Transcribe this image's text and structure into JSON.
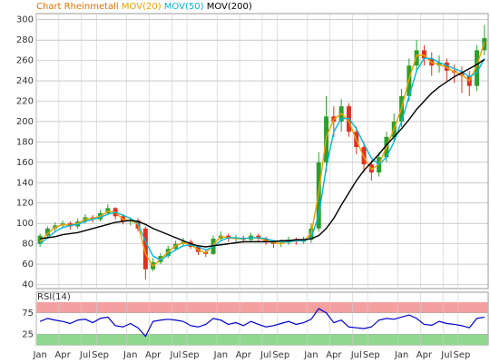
{
  "chart_data": [
    {
      "type": "candlestick",
      "title": "Chart Rheinmetall",
      "title_color": "#e07000",
      "categories": [
        "Jan",
        null,
        null,
        "Apr",
        null,
        null,
        "Jul",
        null,
        "Sep",
        null,
        null,
        null,
        "Jan",
        null,
        null,
        "Apr",
        null,
        null,
        "Jul",
        null,
        "Sep",
        null,
        null,
        null,
        "Jan",
        null,
        null,
        "Apr",
        null,
        null,
        "Jul",
        null,
        "Sep",
        null,
        null,
        null,
        "Jan",
        null,
        null,
        "Apr",
        null,
        null,
        "Jul",
        null,
        "Sep",
        null,
        null,
        null,
        "Jan",
        null,
        null,
        "Apr",
        null,
        null,
        "Jul",
        null,
        "Sep",
        null,
        null,
        null
      ],
      "open": [
        80,
        88,
        95,
        98,
        100,
        97,
        102,
        106,
        104,
        110,
        115,
        107,
        102,
        103,
        95,
        55,
        62,
        68,
        75,
        80,
        82,
        77,
        72,
        70,
        85,
        88,
        85,
        86,
        84,
        88,
        85,
        82,
        80,
        81,
        84,
        82,
        84,
        95,
        160,
        205,
        200,
        215,
        190,
        175,
        158,
        150,
        165,
        185,
        200,
        225,
        255,
        270,
        262,
        255,
        258,
        250,
        248,
        245,
        235,
        270
      ],
      "high": [
        90,
        97,
        101,
        103,
        102,
        105,
        109,
        108,
        113,
        119,
        116,
        109,
        106,
        105,
        97,
        66,
        71,
        78,
        83,
        86,
        84,
        79,
        74,
        88,
        92,
        90,
        89,
        88,
        91,
        90,
        87,
        84,
        84,
        87,
        86,
        87,
        100,
        170,
        225,
        215,
        222,
        218,
        195,
        180,
        162,
        170,
        190,
        208,
        232,
        262,
        280,
        275,
        268,
        265,
        262,
        256,
        254,
        250,
        275,
        295
      ],
      "low": [
        77,
        85,
        92,
        95,
        94,
        95,
        100,
        101,
        102,
        108,
        104,
        99,
        98,
        92,
        45,
        53,
        60,
        66,
        73,
        77,
        75,
        69,
        67,
        69,
        83,
        82,
        82,
        81,
        82,
        82,
        79,
        76,
        77,
        79,
        79,
        80,
        81,
        92,
        150,
        185,
        190,
        185,
        168,
        150,
        142,
        146,
        160,
        180,
        195,
        220,
        250,
        255,
        245,
        248,
        240,
        238,
        228,
        225,
        230,
        265
      ],
      "close": [
        88,
        95,
        98,
        100,
        97,
        102,
        106,
        104,
        110,
        115,
        107,
        102,
        103,
        95,
        55,
        62,
        68,
        75,
        80,
        82,
        77,
        72,
        70,
        85,
        88,
        85,
        86,
        84,
        88,
        85,
        82,
        80,
        81,
        84,
        82,
        84,
        95,
        160,
        205,
        200,
        215,
        190,
        175,
        158,
        150,
        165,
        185,
        200,
        225,
        255,
        270,
        262,
        255,
        258,
        250,
        248,
        245,
        235,
        270,
        282
      ],
      "up_color": "#2ca02c",
      "down_color": "#e03020",
      "series": [
        {
          "name": "MOV(20)",
          "color": "#f0a000",
          "values": [
            82,
            90,
            96,
            99,
            98,
            100,
            104,
            105,
            107,
            112,
            111,
            104,
            103,
            99,
            70,
            58,
            65,
            72,
            78,
            81,
            79,
            74,
            71,
            79,
            87,
            86,
            85,
            85,
            86,
            86,
            83,
            81,
            80,
            83,
            83,
            83,
            90,
            130,
            185,
            202,
            208,
            200,
            182,
            165,
            153,
            158,
            175,
            193,
            213,
            242,
            265,
            265,
            258,
            256,
            253,
            249,
            246,
            240,
            255,
            278
          ]
        },
        {
          "name": "MOV(50)",
          "color": "#00b8d8",
          "values": [
            80,
            86,
            92,
            96,
            98,
            99,
            102,
            104,
            106,
            109,
            111,
            108,
            105,
            100,
            82,
            68,
            64,
            69,
            74,
            78,
            79,
            77,
            74,
            77,
            83,
            86,
            86,
            85,
            86,
            86,
            85,
            83,
            82,
            82,
            83,
            83,
            86,
            108,
            155,
            190,
            203,
            203,
            193,
            178,
            164,
            158,
            165,
            180,
            200,
            225,
            250,
            262,
            262,
            258,
            255,
            252,
            249,
            244,
            248,
            262
          ]
        },
        {
          "name": "MOV(200)",
          "color": "#000000",
          "values": [
            85,
            86,
            87,
            89,
            90,
            91,
            93,
            95,
            97,
            99,
            101,
            102,
            103,
            102,
            99,
            95,
            92,
            89,
            86,
            83,
            80,
            78,
            77,
            78,
            79,
            80,
            81,
            82,
            82,
            82,
            82,
            82,
            83,
            83,
            84,
            84,
            85,
            88,
            95,
            105,
            118,
            130,
            142,
            152,
            160,
            168,
            177,
            185,
            193,
            202,
            212,
            220,
            228,
            234,
            239,
            244,
            248,
            252,
            256,
            261
          ]
        }
      ],
      "ylim": [
        36,
        306
      ],
      "yticks": [
        40,
        60,
        80,
        100,
        120,
        140,
        160,
        180,
        200,
        220,
        240,
        260,
        280,
        300
      ],
      "grid": true
    },
    {
      "type": "line",
      "title": "RSI(14)",
      "color": "#0000cc",
      "values": [
        55,
        62,
        58,
        55,
        50,
        58,
        60,
        52,
        62,
        65,
        45,
        42,
        50,
        40,
        20,
        55,
        58,
        60,
        58,
        55,
        45,
        42,
        48,
        62,
        58,
        48,
        52,
        45,
        55,
        48,
        42,
        45,
        50,
        55,
        48,
        52,
        60,
        85,
        75,
        52,
        58,
        42,
        40,
        38,
        42,
        58,
        62,
        60,
        65,
        70,
        62,
        48,
        46,
        55,
        50,
        48,
        45,
        40,
        62,
        65
      ],
      "ylim": [
        0,
        100
      ],
      "yticks": [
        25,
        75
      ],
      "band_colors": [
        "#f4a0a0",
        "#90d890"
      ],
      "grid": true
    }
  ]
}
